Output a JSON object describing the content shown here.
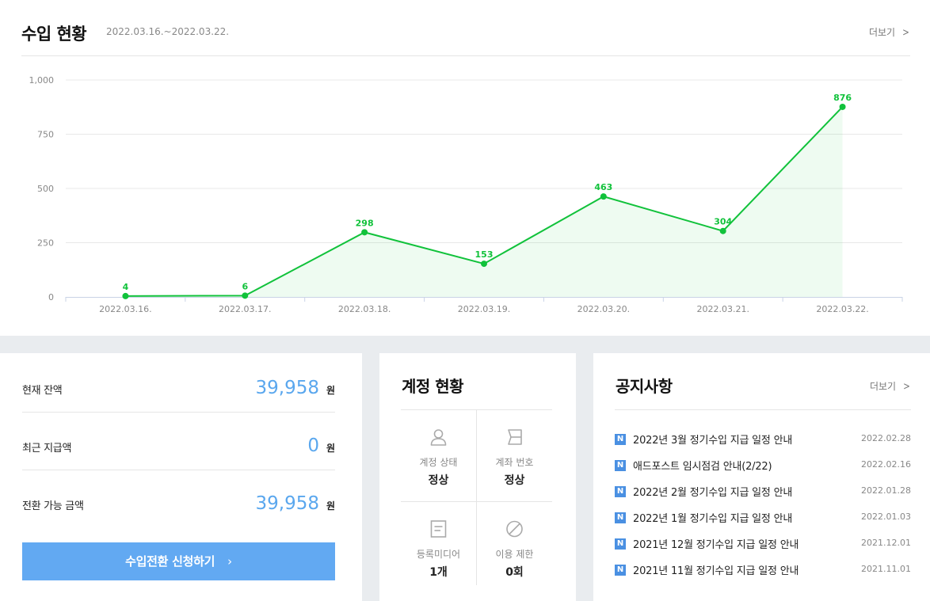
{
  "revenue": {
    "title": "수입 현황",
    "period": "2022.03.16.~2022.03.22.",
    "more_label": "더보기",
    "line_color": "#11c23b"
  },
  "chart_data": {
    "type": "area",
    "categories": [
      "2022.03.16.",
      "2022.03.17.",
      "2022.03.18.",
      "2022.03.19.",
      "2022.03.20.",
      "2022.03.21.",
      "2022.03.22."
    ],
    "series": [
      {
        "values": [
          4,
          6,
          298,
          153,
          463,
          304,
          876
        ]
      }
    ],
    "y_ticks": [
      "0",
      "250",
      "500",
      "750",
      "1,000"
    ],
    "ylim": [
      0,
      1000
    ],
    "grid": true,
    "data_labels": true
  },
  "balance": {
    "rows": [
      {
        "label": "현재 잔액",
        "value": "39,958",
        "unit": "원"
      },
      {
        "label": "최근 지급액",
        "value": "0",
        "unit": "원"
      },
      {
        "label": "전환 가능 금액",
        "value": "39,958",
        "unit": "원"
      }
    ],
    "cta_label": "수입전환 신청하기",
    "cta_chevron": "›",
    "accent": "#62a9f2"
  },
  "account": {
    "title": "계정 현황",
    "cells": [
      {
        "icon": "user-icon",
        "title": "계정 상태",
        "value": "정상"
      },
      {
        "icon": "wallet-icon",
        "title": "계좌 번호",
        "value": "정상"
      },
      {
        "icon": "document-icon",
        "title": "등록미디어",
        "value": "1개"
      },
      {
        "icon": "prohibited-icon",
        "title": "이용 제한",
        "value": "0회"
      }
    ]
  },
  "notices": {
    "title": "공지사항",
    "more_label": "더보기",
    "badge": "N",
    "items": [
      {
        "text": "2022년 3월 정기수입 지급 일정 안내",
        "date": "2022.02.28"
      },
      {
        "text": "애드포스트 임시점검 안내(2/22)",
        "date": "2022.02.16"
      },
      {
        "text": "2022년 2월 정기수입 지급 일정 안내",
        "date": "2022.01.28"
      },
      {
        "text": "2022년 1월 정기수입 지급 일정 안내",
        "date": "2022.01.03"
      },
      {
        "text": "2021년 12월 정기수입 지급 일정 안내",
        "date": "2021.12.01"
      },
      {
        "text": "2021년 11월 정기수입 지급 일정 안내",
        "date": "2021.11.01"
      }
    ]
  }
}
